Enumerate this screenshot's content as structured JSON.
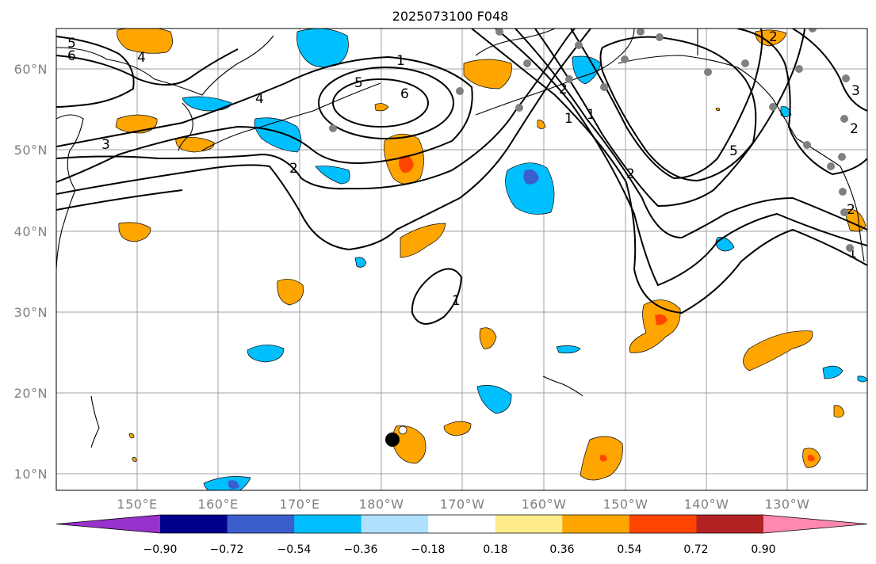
{
  "title": "2025073100 F048",
  "lat_labels": [
    "60°N",
    "50°N",
    "40°N",
    "30°N",
    "20°N",
    "10°N"
  ],
  "lon_labels": [
    "150°E",
    "160°E",
    "170°E",
    "180°W",
    "170°W",
    "160°W",
    "150°W",
    "140°W",
    "130°W"
  ],
  "colorbar": {
    "tick_labels": [
      "−0.90",
      "−0.72",
      "−0.54",
      "−0.36",
      "−0.18",
      "0.18",
      "0.36",
      "0.54",
      "0.72",
      "0.90"
    ],
    "colors": [
      "#9932cc",
      "#00008b",
      "#3a5fcd",
      "#00bfff",
      "#b0e2ff",
      "#ffffff",
      "#ffec8b",
      "#ffa500",
      "#ff4500",
      "#b22222",
      "#ff88b0"
    ]
  },
  "contour_labels": [
    "5",
    "6",
    "4",
    "3",
    "2",
    "4",
    "1",
    "5",
    "6",
    "2",
    "1",
    "1",
    "1",
    "2",
    "5",
    "2",
    "2",
    "3",
    "2",
    "1"
  ],
  "colors": {
    "gridline": "#a0a0a0",
    "land_marker": "#808080",
    "storm_marker": "#000000"
  }
}
